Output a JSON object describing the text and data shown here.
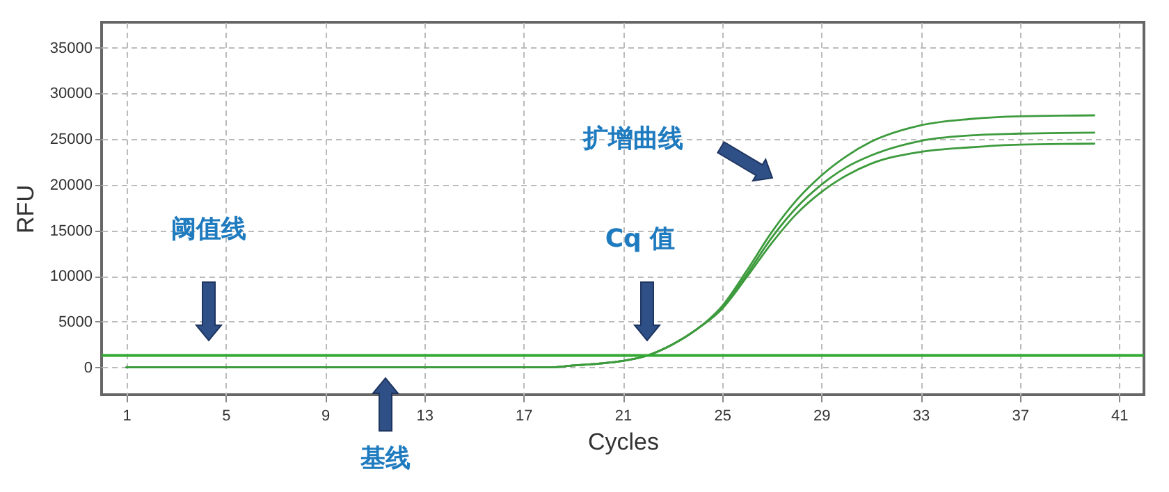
{
  "chart_data": {
    "type": "line",
    "xlabel": "Cycles",
    "ylabel": "RFU",
    "xlim": [
      0,
      42
    ],
    "ylim": [
      -3000,
      37800
    ],
    "xticks": [
      1,
      5,
      9,
      13,
      17,
      21,
      25,
      29,
      33,
      37,
      41
    ],
    "yticks": [
      0,
      5000,
      10000,
      15000,
      20000,
      25000,
      30000,
      35000
    ],
    "grid": true,
    "line_style": "solid",
    "series": [
      {
        "color": "#3d9b3d",
        "x": [
          1,
          17,
          18,
          19,
          20,
          21,
          22,
          23,
          24,
          25,
          26,
          27,
          28,
          29,
          30,
          31,
          33,
          35,
          37,
          40
        ],
        "values": [
          0,
          0,
          0,
          200,
          400,
          700,
          1300,
          2500,
          4200,
          6700,
          10600,
          14800,
          18300,
          21000,
          23100,
          24700,
          26500,
          27200,
          27500,
          27600
        ]
      },
      {
        "color": "#3d9b3d",
        "x": [
          1,
          17,
          18,
          19,
          20,
          21,
          22,
          23,
          24,
          25,
          26,
          27,
          28,
          29,
          30,
          31,
          33,
          35,
          37,
          40
        ],
        "values": [
          0,
          0,
          0,
          200,
          400,
          700,
          1300,
          2500,
          4200,
          6500,
          10200,
          14200,
          17500,
          20000,
          21900,
          23200,
          24800,
          25400,
          25600,
          25700
        ]
      },
      {
        "color": "#3d9b3d",
        "x": [
          1,
          17,
          18,
          19,
          20,
          21,
          22,
          23,
          24,
          25,
          26,
          27,
          28,
          29,
          30,
          31,
          33,
          35,
          37,
          40
        ],
        "values": [
          0,
          0,
          0,
          200,
          400,
          700,
          1300,
          2500,
          4200,
          6400,
          9900,
          13600,
          16800,
          19200,
          21000,
          22300,
          23600,
          24100,
          24400,
          24500
        ]
      }
    ],
    "ref_lines": [
      {
        "axis": "y",
        "value": 1300,
        "color": "#33a833"
      }
    ],
    "annotations": [
      "阈值线",
      "基线",
      "Cq 值",
      "扩增曲线"
    ]
  }
}
